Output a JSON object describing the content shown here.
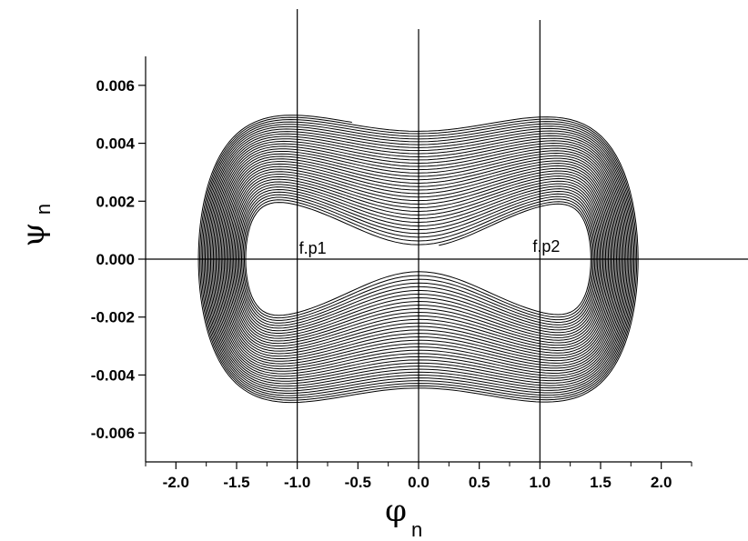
{
  "chart_data": {
    "type": "line",
    "title": "",
    "xlabel": "φ",
    "xlabel_subscript": "n",
    "ylabel": "ψ",
    "ylabel_subscript": "n",
    "xlim": [
      -2.25,
      2.25
    ],
    "ylim": [
      -0.007,
      0.007
    ],
    "xticks": [
      -2.0,
      -1.5,
      -1.0,
      -0.5,
      0.0,
      0.5,
      1.0,
      1.5,
      2.0
    ],
    "xtick_labels": [
      "-2.0",
      "-1.5",
      "-1.0",
      "-0.5",
      "0.0",
      "0.5",
      "1.0",
      "1.5",
      "2.0"
    ],
    "yticks": [
      0.006,
      0.004,
      0.002,
      0.0,
      -0.002,
      -0.004,
      -0.006
    ],
    "ytick_labels": [
      "0.006",
      "0.004",
      "0.002",
      "0.000",
      "-0.002",
      "-0.004",
      "-0.006"
    ],
    "grid": false,
    "legend": "none",
    "reference_lines": {
      "vertical_x": [
        -1.0,
        0.0,
        1.0
      ],
      "horizontal_y": [
        0.0
      ]
    },
    "annotations": [
      {
        "text": "f.p1",
        "x": -1.0,
        "y": 0.0
      },
      {
        "text": "f.p2",
        "x": 1.0,
        "y": 0.0
      }
    ],
    "series": [
      {
        "description_type": "double_well_phase_trajectory",
        "turns": 36,
        "start_point": [
          -0.55,
          0.0052
        ],
        "inner_x_extent": 1.42,
        "outer_x_extent": 1.82,
        "inner_peak_y": 0.00225,
        "outer_peak_y": 0.0053,
        "inner_center_y": 0.0004,
        "outer_center_y": 0.0045,
        "end_point": [
          0.12,
          0.0003
        ]
      }
    ],
    "line_color": "#000000"
  }
}
